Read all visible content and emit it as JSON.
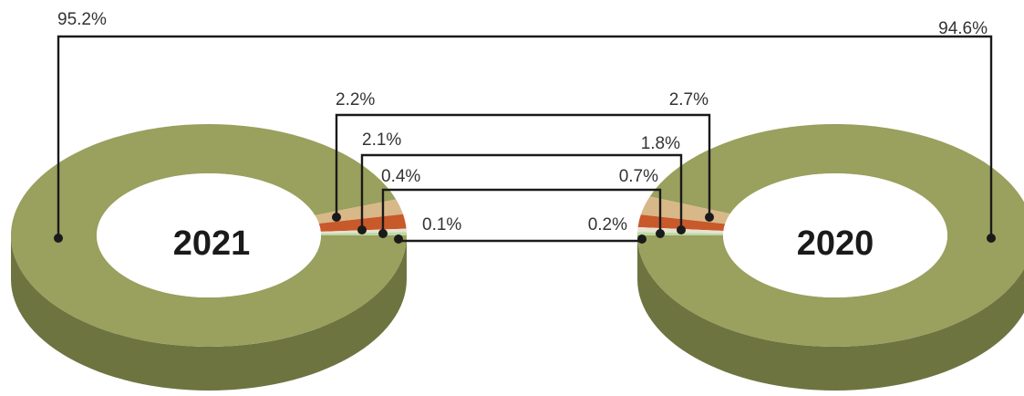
{
  "chart_data": [
    {
      "type": "pie",
      "title": "2021",
      "values": [
        95.2,
        2.2,
        2.1,
        0.4,
        0.1
      ],
      "labels": [
        "95.2%",
        "2.2%",
        "2.1%",
        "0.4%",
        "0.1%"
      ]
    },
    {
      "type": "pie",
      "title": "2020",
      "values": [
        94.6,
        2.7,
        1.8,
        0.7,
        0.2
      ],
      "labels": [
        "94.6%",
        "2.7%",
        "1.8%",
        "0.7%",
        "0.2%"
      ]
    }
  ],
  "colors": {
    "series": [
      "#9aa05d",
      "#d8b888",
      "#c8592a",
      "#e7e2d2",
      "#bdd9a5"
    ],
    "side": [
      "#6e7440",
      "#a88a62",
      "#8f3c1c",
      "#b8b2a2",
      "#8fb57a"
    ],
    "leader": "#1a1a1a",
    "label": "#333333"
  }
}
